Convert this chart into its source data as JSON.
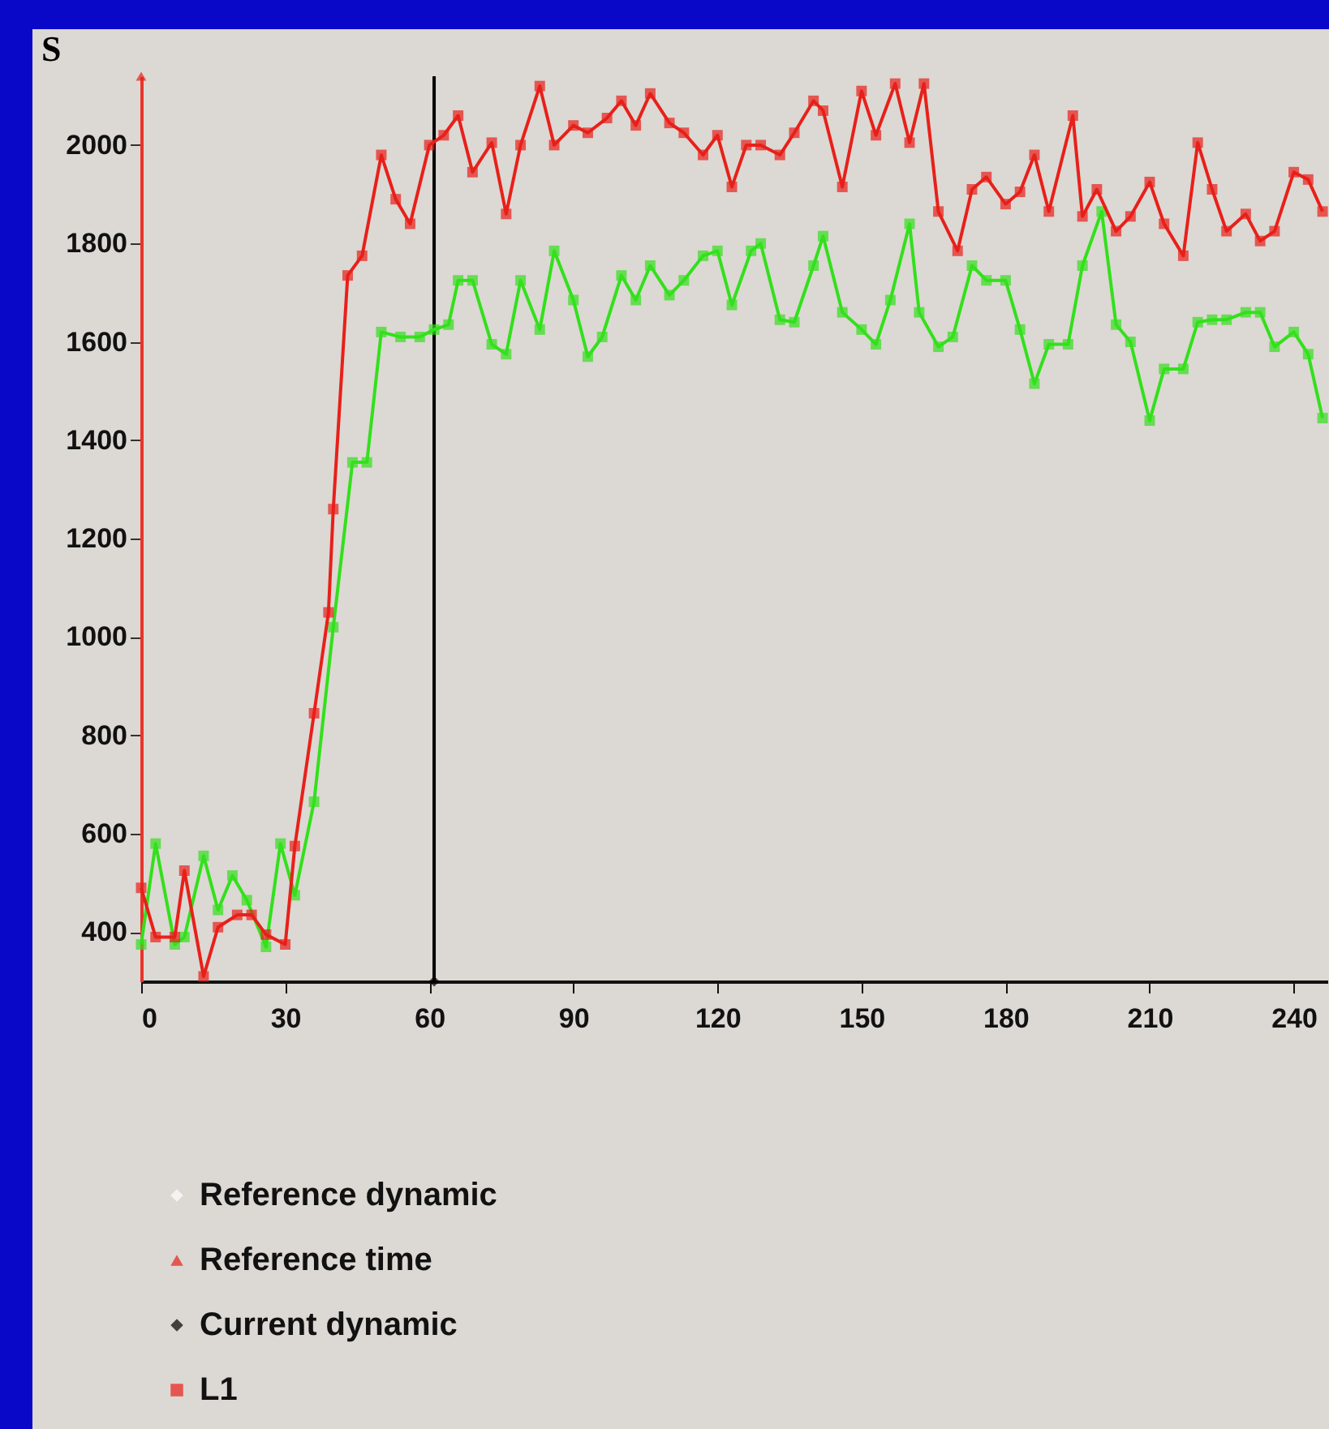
{
  "chart_data": {
    "type": "line",
    "ylabel": "S",
    "xlim": [
      0,
      247
    ],
    "ylim": [
      300,
      2140
    ],
    "xticks": [
      0,
      30,
      60,
      90,
      120,
      150,
      180,
      210,
      240
    ],
    "yticks": [
      400,
      600,
      800,
      1000,
      1200,
      1400,
      1600,
      1800,
      2000
    ],
    "grid": false,
    "legend": "bottom left",
    "ref_lines": [
      {
        "axis": "x",
        "value": 61,
        "color": "#000000"
      }
    ],
    "series": [
      {
        "type": "scatter",
        "name": "Reference dynamic",
        "marker": "diamond",
        "color": "#ffffff"
      },
      {
        "type": "scatter",
        "name": "Reference time",
        "marker": "triangle",
        "color": "#e8201a",
        "x": [
          0
        ],
        "values": [
          2140
        ]
      },
      {
        "type": "scatter",
        "name": "Current dynamic",
        "marker": "diamond",
        "color": "#000000",
        "x": [
          61
        ],
        "values": [
          300
        ]
      },
      {
        "marker": "square",
        "color": "#33e01c",
        "x": [
          0,
          3,
          7,
          9,
          13,
          16,
          19,
          22,
          26,
          29,
          32,
          36,
          40,
          44,
          47,
          50,
          54,
          58,
          61,
          64,
          66,
          69,
          73,
          76,
          79,
          83,
          86,
          90,
          93,
          96,
          100,
          103,
          106,
          110,
          113,
          117,
          120,
          123,
          127,
          129,
          133,
          136,
          140,
          142,
          146,
          150,
          153,
          156,
          160,
          162,
          166,
          169,
          173,
          176,
          180,
          183,
          186,
          189,
          193,
          196,
          200,
          203,
          206,
          210,
          213,
          217,
          220,
          223,
          226,
          230,
          233,
          236,
          240,
          243,
          246
        ],
        "values": [
          375,
          580,
          375,
          390,
          555,
          445,
          515,
          465,
          370,
          580,
          475,
          665,
          1020,
          1355,
          1355,
          1620,
          1610,
          1610,
          1625,
          1635,
          1725,
          1725,
          1595,
          1575,
          1725,
          1625,
          1785,
          1685,
          1570,
          1610,
          1735,
          1685,
          1755,
          1695,
          1725,
          1775,
          1785,
          1675,
          1785,
          1800,
          1645,
          1640,
          1755,
          1815,
          1660,
          1625,
          1595,
          1685,
          1840,
          1660,
          1590,
          1610,
          1755,
          1725,
          1725,
          1625,
          1515,
          1595,
          1595,
          1755,
          1865,
          1635,
          1600,
          1440,
          1545,
          1545,
          1640,
          1645,
          1645,
          1660,
          1660,
          1590,
          1620,
          1575,
          1445
        ]
      },
      {
        "name": "L1",
        "marker": "square",
        "color": "#e8201a",
        "x": [
          0,
          3,
          7,
          9,
          13,
          16,
          20,
          23,
          26,
          30,
          32,
          36,
          39,
          40,
          43,
          46,
          50,
          53,
          56,
          60,
          63,
          66,
          69,
          73,
          76,
          79,
          83,
          86,
          90,
          93,
          97,
          100,
          103,
          106,
          110,
          113,
          117,
          120,
          123,
          126,
          129,
          133,
          136,
          140,
          142,
          146,
          150,
          153,
          157,
          160,
          163,
          166,
          170,
          173,
          176,
          180,
          183,
          186,
          189,
          194,
          196,
          199,
          203,
          206,
          210,
          213,
          217,
          220,
          223,
          226,
          230,
          233,
          236,
          240,
          243,
          246
        ],
        "values": [
          490,
          390,
          390,
          525,
          310,
          410,
          435,
          435,
          395,
          375,
          575,
          845,
          1050,
          1260,
          1735,
          1775,
          1980,
          1890,
          1840,
          2000,
          2020,
          2060,
          1945,
          2005,
          1860,
          2000,
          2120,
          2000,
          2040,
          2025,
          2055,
          2090,
          2040,
          2105,
          2045,
          2025,
          1980,
          2020,
          1915,
          2000,
          2000,
          1980,
          2025,
          2090,
          2070,
          1915,
          2110,
          2020,
          2125,
          2005,
          2125,
          1865,
          1785,
          1910,
          1935,
          1880,
          1905,
          1980,
          1865,
          2060,
          1855,
          1910,
          1825,
          1855,
          1925,
          1840,
          1775,
          2005,
          1910,
          1825,
          1860,
          1805,
          1825,
          1945,
          1930,
          1865
        ]
      }
    ]
  }
}
